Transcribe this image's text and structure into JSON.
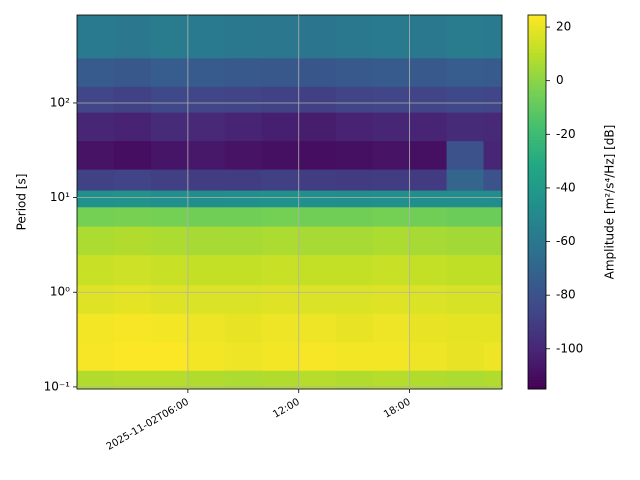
{
  "chart_data": {
    "type": "heatmap",
    "colormap": "viridis",
    "ylabel": "Period [s]",
    "colorbar_label": "Amplitude [m²/s⁴/Hz] [dB]",
    "log_y": true,
    "grid": true,
    "x": [
      "2025-11-02T00:00",
      "2025-11-02T02:00",
      "2025-11-02T04:00",
      "2025-11-02T06:00",
      "2025-11-02T08:00",
      "2025-11-02T10:00",
      "2025-11-02T12:00",
      "2025-11-02T14:00",
      "2025-11-02T16:00",
      "2025-11-02T18:00",
      "2025-11-02T20:00",
      "2025-11-02T22:00",
      "2025-11-02T23:00"
    ],
    "y": [
      0.095,
      0.15,
      0.3,
      0.6,
      1.2,
      2.5,
      5,
      8,
      12,
      20,
      40,
      80,
      150,
      300,
      850
    ],
    "values": [
      [
        8,
        9,
        9,
        8,
        7,
        8,
        9,
        8,
        9,
        8,
        7,
        8
      ],
      [
        23,
        24,
        24,
        22,
        21,
        22,
        23,
        22,
        22,
        21,
        20,
        21
      ],
      [
        22,
        23,
        22,
        21,
        20,
        21,
        21,
        20,
        21,
        20,
        19,
        19
      ],
      [
        18,
        19,
        18,
        17,
        17,
        18,
        17,
        17,
        18,
        17,
        16,
        16
      ],
      [
        13,
        14,
        13,
        12,
        12,
        13,
        12,
        12,
        13,
        12,
        11,
        11
      ],
      [
        7,
        8,
        7,
        6,
        6,
        7,
        6,
        6,
        7,
        6,
        5,
        5
      ],
      [
        -5,
        -4,
        -5,
        -6,
        -6,
        -5,
        -6,
        -6,
        -5,
        -6,
        -7,
        -7
      ],
      [
        -45,
        -44,
        -46,
        -47,
        -46,
        -45,
        -46,
        -47,
        -46,
        -47,
        -48,
        -48
      ],
      [
        -88,
        -87,
        -89,
        -90,
        -90,
        -89,
        -90,
        -91,
        -90,
        -91,
        -70,
        -80
      ],
      [
        -108,
        -110,
        -107,
        -106,
        -108,
        -109,
        -110,
        -109,
        -108,
        -109,
        -80,
        -100
      ],
      [
        -100,
        -102,
        -98,
        -99,
        -101,
        -103,
        -104,
        -102,
        -100,
        -101,
        -98,
        -99
      ],
      [
        -86,
        -88,
        -85,
        -86,
        -87,
        -88,
        -89,
        -87,
        -86,
        -87,
        -85,
        -86
      ],
      [
        -75,
        -77,
        -74,
        -75,
        -76,
        -77,
        -78,
        -76,
        -75,
        -76,
        -74,
        -75
      ],
      [
        -58,
        -60,
        -57,
        -58,
        -59,
        -60,
        -61,
        -59,
        -58,
        -59,
        -57,
        -58
      ]
    ],
    "xlim": [
      "2025-11-02T00:00",
      "2025-11-02T23:00"
    ],
    "xticks": [
      {
        "value": "2025-11-02T06:00",
        "label": "2025-11-02T06:00"
      },
      {
        "value": "2025-11-02T12:00",
        "label": "12:00"
      },
      {
        "value": "2025-11-02T18:00",
        "label": "18:00"
      }
    ],
    "ylim": [
      0.095,
      850
    ],
    "yticks": [
      {
        "value": 0.1,
        "label": "10⁻¹"
      },
      {
        "value": 1,
        "label": "10⁰"
      },
      {
        "value": 10,
        "label": "10¹"
      },
      {
        "value": 100,
        "label": "10²"
      }
    ],
    "clim": [
      -115,
      24.5
    ],
    "colorbar_ticks": [
      20,
      0,
      -20,
      -40,
      -60,
      -80,
      -100
    ]
  }
}
